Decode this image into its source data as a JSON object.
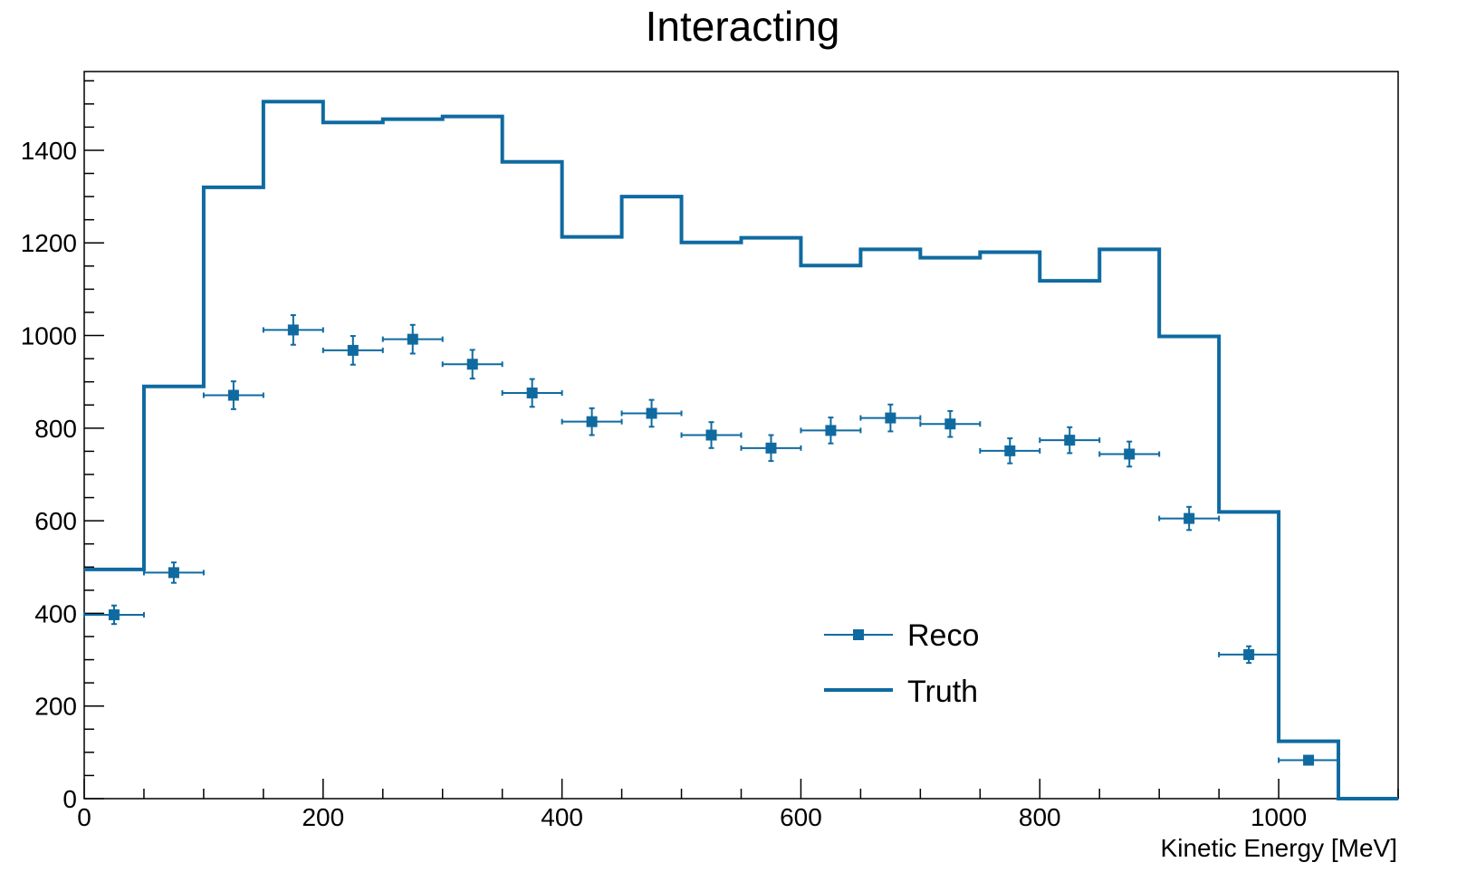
{
  "chart_data": {
    "type": "histogram",
    "title": "Interacting",
    "xlabel": "Kinetic Energy [MeV]",
    "ylabel": "",
    "xlim": [
      0,
      1100
    ],
    "ylim": [
      0,
      1550
    ],
    "x_ticks": [
      0,
      200,
      400,
      600,
      800,
      1000
    ],
    "y_ticks": [
      0,
      200,
      400,
      600,
      800,
      1000,
      1200,
      1400
    ],
    "bin_edges": [
      0,
      50,
      100,
      150,
      200,
      250,
      300,
      350,
      400,
      450,
      500,
      550,
      600,
      650,
      700,
      750,
      800,
      850,
      900,
      950,
      1000,
      1050,
      1100
    ],
    "series": [
      {
        "name": "Reco",
        "style": "points-with-errors",
        "values": [
          397,
          488,
          871,
          1012,
          968,
          992,
          938,
          876,
          814,
          832,
          785,
          757,
          795,
          822,
          809,
          751,
          774,
          744,
          605,
          311,
          83,
          null
        ],
        "errors": [
          20,
          22,
          30,
          32,
          31,
          31,
          31,
          30,
          29,
          29,
          28,
          28,
          28,
          29,
          28,
          27,
          28,
          27,
          25,
          18,
          9,
          null
        ]
      },
      {
        "name": "Truth",
        "style": "step",
        "values": [
          495,
          890,
          1320,
          1505,
          1460,
          1467,
          1473,
          1375,
          1213,
          1300,
          1201,
          1211,
          1151,
          1186,
          1168,
          1180,
          1118,
          1186,
          998,
          619,
          124,
          0
        ]
      }
    ],
    "legend": {
      "placement": "bottom-center",
      "entries": [
        "Reco",
        "Truth"
      ]
    },
    "color": "#0f6aa0",
    "grid": false
  }
}
